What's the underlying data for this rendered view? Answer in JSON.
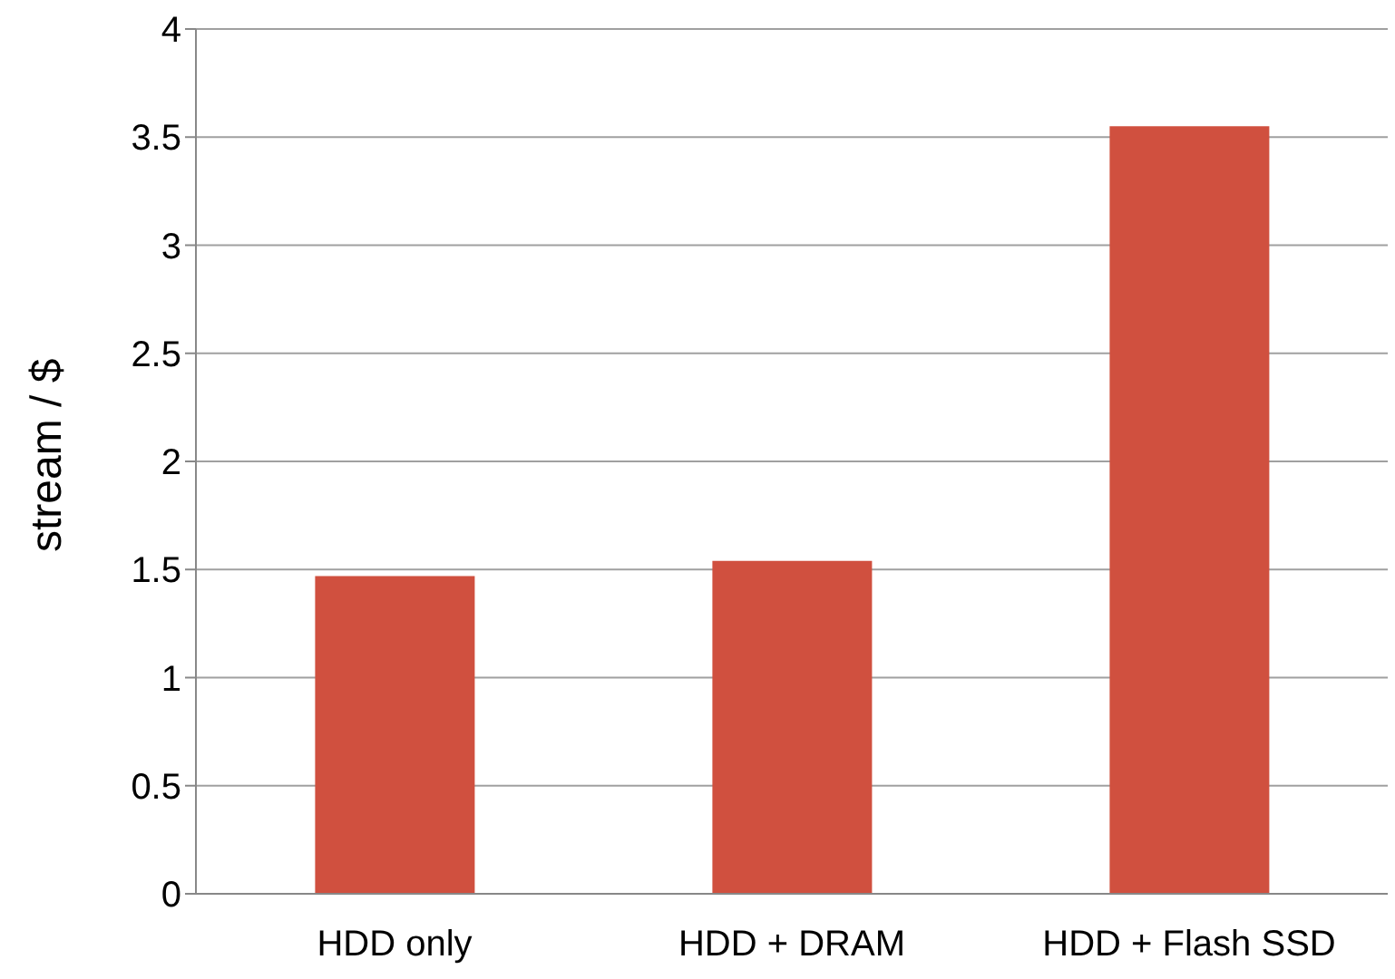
{
  "chart_data": {
    "type": "bar",
    "ylabel": "stream / $",
    "categories": [
      "HDD only",
      "HDD + DRAM",
      "HDD + Flash SSD"
    ],
    "values": [
      1.47,
      1.54,
      3.55
    ],
    "color": "#d0503f",
    "ylim": [
      0,
      4
    ],
    "yticks": [
      0,
      0.5,
      1,
      1.5,
      2,
      2.5,
      3,
      3.5,
      4
    ],
    "grid": "y"
  }
}
